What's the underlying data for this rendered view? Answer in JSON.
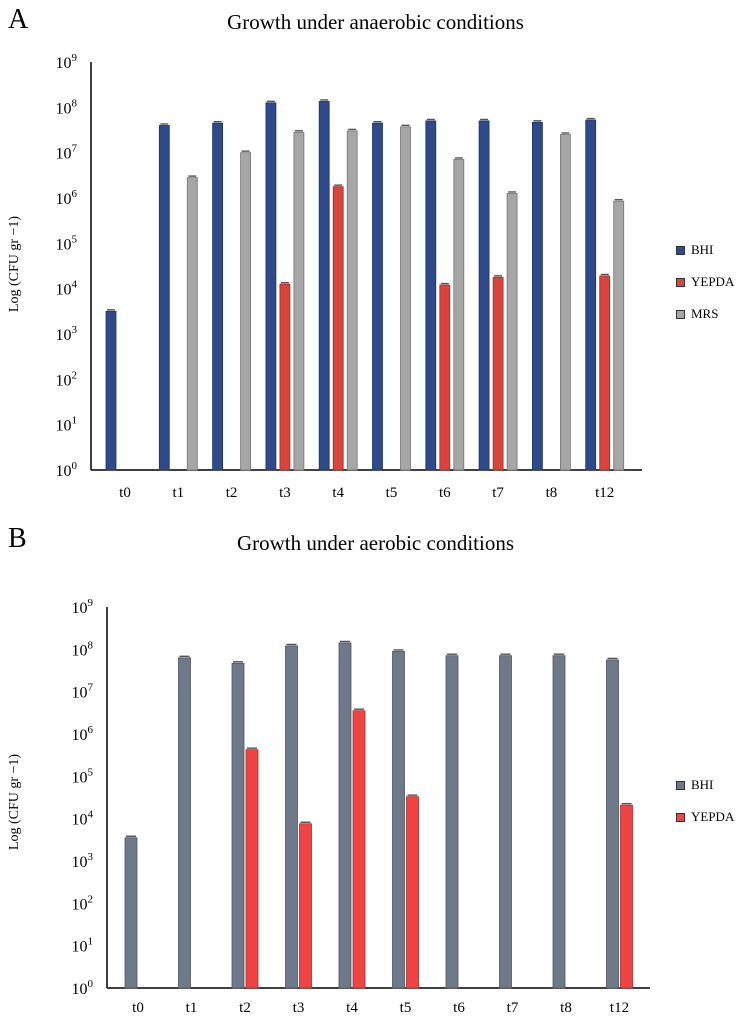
{
  "chart_data": [
    {
      "panel": "A",
      "type": "bar",
      "title": "Growth under anaerobic conditions",
      "xlabel": "",
      "ylabel": "Log (CFU gr −1)",
      "scale": "log10",
      "ylim_exponent": [
        0,
        9
      ],
      "y_tick_labels": [
        {
          "base": "10",
          "exp": "0"
        },
        {
          "base": "10",
          "exp": "1"
        },
        {
          "base": "10",
          "exp": "2"
        },
        {
          "base": "10",
          "exp": "3"
        },
        {
          "base": "10",
          "exp": "4"
        },
        {
          "base": "10",
          "exp": "5"
        },
        {
          "base": "10",
          "exp": "6"
        },
        {
          "base": "10",
          "exp": "7"
        },
        {
          "base": "10",
          "exp": "8"
        },
        {
          "base": "10",
          "exp": "9"
        }
      ],
      "categories": [
        "t0",
        "t1",
        "t2",
        "t3",
        "t4",
        "t5",
        "t6",
        "t7",
        "t8",
        "t12"
      ],
      "legend_position": "right",
      "series": [
        {
          "name": "BHI",
          "color": "#2e4a8b",
          "log_values": [
            3.5,
            7.6,
            7.65,
            8.1,
            8.13,
            7.65,
            7.7,
            7.7,
            7.67,
            7.72
          ]
        },
        {
          "name": "YEPDA",
          "color": "#d9443f",
          "log_values": [
            null,
            null,
            null,
            4.1,
            6.25,
            null,
            4.08,
            4.25,
            null,
            4.28
          ]
        },
        {
          "name": "MRS",
          "color": "#a6a6a6",
          "log_values": [
            null,
            6.45,
            7.0,
            7.45,
            7.48,
            7.57,
            6.85,
            6.1,
            7.4,
            5.93
          ]
        }
      ]
    },
    {
      "panel": "B",
      "type": "bar",
      "title": "Growth under aerobic conditions",
      "xlabel": "",
      "ylabel": "Log (CFU gr −1)",
      "scale": "log10",
      "ylim_exponent": [
        0,
        9
      ],
      "y_tick_labels": [
        {
          "base": "10",
          "exp": "0"
        },
        {
          "base": "10",
          "exp": "1"
        },
        {
          "base": "10",
          "exp": "2"
        },
        {
          "base": "10",
          "exp": "3"
        },
        {
          "base": "10",
          "exp": "4"
        },
        {
          "base": "10",
          "exp": "5"
        },
        {
          "base": "10",
          "exp": "6"
        },
        {
          "base": "10",
          "exp": "7"
        },
        {
          "base": "10",
          "exp": "8"
        },
        {
          "base": "10",
          "exp": "9"
        }
      ],
      "categories": [
        "t0",
        "t1",
        "t2",
        "t3",
        "t4",
        "t5",
        "t6",
        "t7",
        "t8",
        "t12"
      ],
      "legend_position": "right",
      "series": [
        {
          "name": "BHI",
          "color": "#6e7a8a",
          "log_values": [
            3.55,
            7.8,
            7.67,
            8.08,
            8.15,
            7.95,
            7.85,
            7.85,
            7.85,
            7.75
          ]
        },
        {
          "name": "YEPDA",
          "color": "#f04444",
          "log_values": [
            null,
            null,
            5.63,
            3.88,
            6.55,
            4.52,
            null,
            null,
            null,
            4.32
          ]
        }
      ]
    }
  ]
}
